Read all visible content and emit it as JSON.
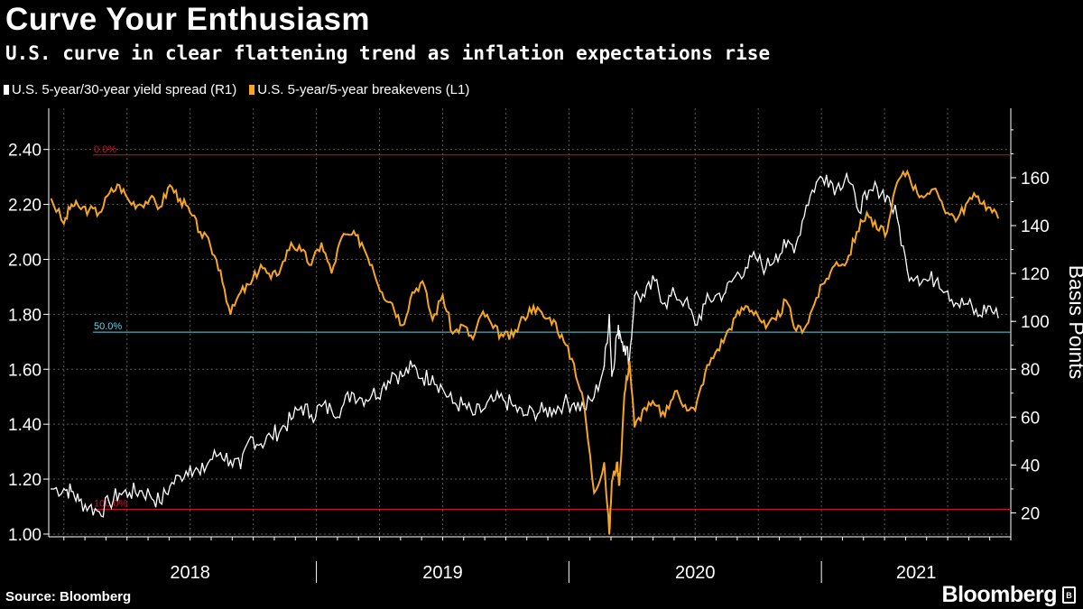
{
  "title": "Curve Your Enthusiasm",
  "subtitle": "U.S. curve in clear flattening trend as inflation expectations rise",
  "source": "Source: Bloomberg",
  "brand": "Bloomberg",
  "brand_icon": "B",
  "colors": {
    "background": "#000000",
    "spread": "#ffffff",
    "breakevens": "#f5a623",
    "red_ref": "#c8102e",
    "cyan_ref": "#5fd3e6",
    "grid": "#5a5a5a"
  },
  "chart_data": {
    "type": "line",
    "x_unit": "years (fractional)",
    "xlim": [
      2017.94,
      2021.75
    ],
    "years": [
      "2018",
      "2019",
      "2020",
      "2021"
    ],
    "legend": [
      {
        "name": "U.S. 5-year/30-year yield spread (R1)",
        "color": "#ffffff"
      },
      {
        "name": "U.S. 5-year/5-year breakevens (L1)",
        "color": "#f5a623"
      }
    ],
    "left_axis": {
      "ticks": [
        "2.40",
        "2.20",
        "2.00",
        "1.80",
        "1.60",
        "1.40",
        "1.20",
        "1.00"
      ],
      "ylim": [
        0.99,
        2.55
      ]
    },
    "right_axis": {
      "title": "Basis Points",
      "ticks": [
        "160",
        "140",
        "120",
        "100",
        "80",
        "60",
        "40",
        "20"
      ],
      "ylim": [
        10,
        189
      ]
    },
    "reference_lines": [
      {
        "label": "0.0%",
        "left_value": 2.38,
        "color": "#c8102e"
      },
      {
        "label": "50.0%",
        "left_value": 1.735,
        "color": "#5fd3e6"
      },
      {
        "label": "100.0%",
        "left_value": 1.09,
        "color": "#c8102e"
      }
    ],
    "series": [
      {
        "name": "U.S. 5-year/5-year breakevens",
        "axis": "left",
        "x": [
          2017.95,
          2018.0,
          2018.03,
          2018.06,
          2018.1,
          2018.14,
          2018.18,
          2018.22,
          2018.26,
          2018.3,
          2018.34,
          2018.38,
          2018.42,
          2018.46,
          2018.5,
          2018.54,
          2018.58,
          2018.62,
          2018.66,
          2018.7,
          2018.74,
          2018.78,
          2018.82,
          2018.86,
          2018.9,
          2018.94,
          2018.98,
          2019.02,
          2019.06,
          2019.1,
          2019.14,
          2019.18,
          2019.22,
          2019.26,
          2019.3,
          2019.34,
          2019.38,
          2019.42,
          2019.46,
          2019.5,
          2019.54,
          2019.58,
          2019.62,
          2019.66,
          2019.7,
          2019.74,
          2019.78,
          2019.82,
          2019.86,
          2019.9,
          2019.94,
          2019.98,
          2020.02,
          2020.06,
          2020.1,
          2020.14,
          2020.16,
          2020.17,
          2020.19,
          2020.2,
          2020.22,
          2020.24,
          2020.26,
          2020.3,
          2020.34,
          2020.38,
          2020.42,
          2020.46,
          2020.5,
          2020.54,
          2020.58,
          2020.62,
          2020.66,
          2020.7,
          2020.74,
          2020.78,
          2020.82,
          2020.86,
          2020.9,
          2020.94,
          2020.98,
          2021.02,
          2021.06,
          2021.1,
          2021.14,
          2021.18,
          2021.22,
          2021.26,
          2021.3,
          2021.34,
          2021.38,
          2021.42,
          2021.46,
          2021.5,
          2021.54,
          2021.58,
          2021.62,
          2021.66,
          2021.7
        ],
        "values": [
          2.22,
          2.13,
          2.2,
          2.19,
          2.18,
          2.17,
          2.24,
          2.27,
          2.21,
          2.2,
          2.22,
          2.19,
          2.27,
          2.22,
          2.17,
          2.1,
          2.05,
          1.96,
          1.8,
          1.88,
          1.91,
          1.98,
          1.93,
          1.97,
          2.06,
          2.03,
          1.98,
          2.06,
          1.95,
          2.08,
          2.09,
          2.06,
          1.98,
          1.88,
          1.84,
          1.76,
          1.88,
          1.92,
          1.78,
          1.87,
          1.73,
          1.76,
          1.71,
          1.81,
          1.75,
          1.72,
          1.72,
          1.79,
          1.83,
          1.79,
          1.78,
          1.7,
          1.62,
          1.47,
          1.15,
          1.26,
          1.0,
          1.19,
          1.26,
          1.18,
          1.51,
          1.63,
          1.39,
          1.46,
          1.47,
          1.43,
          1.52,
          1.47,
          1.45,
          1.59,
          1.66,
          1.72,
          1.79,
          1.83,
          1.81,
          1.75,
          1.78,
          1.85,
          1.74,
          1.76,
          1.86,
          1.93,
          1.99,
          1.99,
          2.1,
          2.17,
          2.11,
          2.1,
          2.28,
          2.32,
          2.24,
          2.24,
          2.24,
          2.17,
          2.15,
          2.21,
          2.23,
          2.19,
          2.15
        ]
      },
      {
        "name": "U.S. 5-year/30-year yield spread",
        "axis": "right",
        "x": [
          2017.95,
          2018.0,
          2018.03,
          2018.06,
          2018.1,
          2018.14,
          2018.18,
          2018.22,
          2018.26,
          2018.3,
          2018.34,
          2018.38,
          2018.42,
          2018.46,
          2018.5,
          2018.54,
          2018.58,
          2018.62,
          2018.66,
          2018.7,
          2018.74,
          2018.78,
          2018.82,
          2018.86,
          2018.9,
          2018.94,
          2018.98,
          2019.02,
          2019.06,
          2019.1,
          2019.14,
          2019.18,
          2019.22,
          2019.26,
          2019.3,
          2019.34,
          2019.38,
          2019.42,
          2019.46,
          2019.5,
          2019.54,
          2019.58,
          2019.62,
          2019.66,
          2019.7,
          2019.74,
          2019.78,
          2019.82,
          2019.86,
          2019.9,
          2019.94,
          2019.98,
          2020.02,
          2020.06,
          2020.1,
          2020.14,
          2020.16,
          2020.17,
          2020.19,
          2020.2,
          2020.22,
          2020.24,
          2020.26,
          2020.3,
          2020.34,
          2020.38,
          2020.42,
          2020.46,
          2020.5,
          2020.54,
          2020.58,
          2020.62,
          2020.66,
          2020.7,
          2020.74,
          2020.78,
          2020.82,
          2020.86,
          2020.9,
          2020.94,
          2020.98,
          2021.02,
          2021.06,
          2021.1,
          2021.14,
          2021.18,
          2021.22,
          2021.26,
          2021.3,
          2021.34,
          2021.38,
          2021.42,
          2021.46,
          2021.5,
          2021.54,
          2021.58,
          2021.62,
          2021.66,
          2021.7
        ],
        "values": [
          30.0,
          30.1,
          29.0,
          25.0,
          22.5,
          20.5,
          24.2,
          28.2,
          28.4,
          29.2,
          27.7,
          24.4,
          31.1,
          35.3,
          39.6,
          36.0,
          42.3,
          45.1,
          41.8,
          38.5,
          51.8,
          48.8,
          52.0,
          55.0,
          59.0,
          64.4,
          60.9,
          64.5,
          62.9,
          63.8,
          70.3,
          67.8,
          69.4,
          71.9,
          78.6,
          77.0,
          81.0,
          76.3,
          77.2,
          71.8,
          65.8,
          65.2,
          60.9,
          63.1,
          66.6,
          67.3,
          64.6,
          60.6,
          62.3,
          62.3,
          63.3,
          65.9,
          65.9,
          63.7,
          68.4,
          81.3,
          102.8,
          77.1,
          94.4,
          96.0,
          89.8,
          84.4,
          110.7,
          110.3,
          116.9,
          107.7,
          111.2,
          108.6,
          98.5,
          107.3,
          110.7,
          112.0,
          119.0,
          122.5,
          126.4,
          122.3,
          127.9,
          131.1,
          132.3,
          148.5,
          158.1,
          161.0,
          155.6,
          161.6,
          147.8,
          150.9,
          156.0,
          152.5,
          143.2,
          121.3,
          118.9,
          116.9,
          118.1,
          112.6,
          107.3,
          107.2,
          102.1,
          106.4,
          101.6
        ]
      }
    ]
  }
}
